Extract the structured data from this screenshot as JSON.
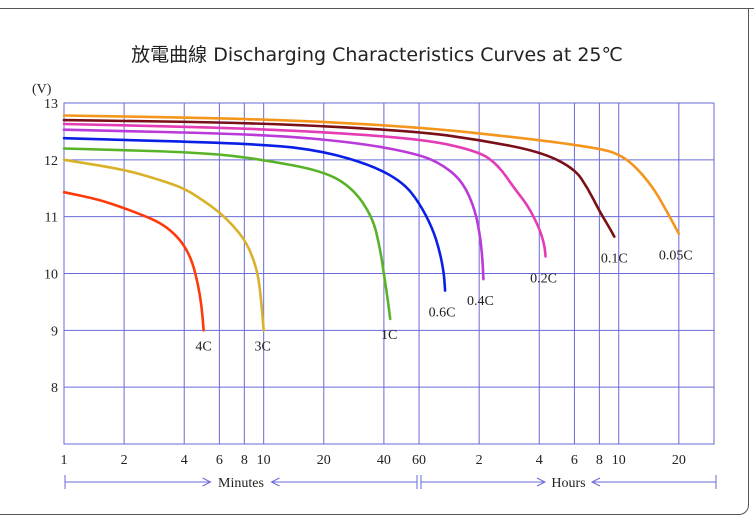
{
  "title": "放電曲線 Discharging Characteristics Curves at 25℃",
  "chart_data": {
    "type": "line",
    "title": "放電曲線 Discharging Characteristics Curves at 25℃",
    "ylabel": "(V)",
    "ylim": [
      7,
      13
    ],
    "y_ticks": [
      "13",
      "12",
      "11",
      "10",
      "9",
      "8"
    ],
    "x_ticks": [
      "1",
      "2",
      "4",
      "6",
      "8",
      "10",
      "20",
      "40",
      "60",
      "2",
      "4",
      "6",
      "8",
      "10",
      "20"
    ],
    "x_unit_labels": [
      "Minutes",
      "Hours"
    ],
    "x_scale": "log (time)",
    "grid": true,
    "series": [
      {
        "name": "4C",
        "color": "#ff3a0a",
        "points": [
          [
            1,
            11.43
          ],
          [
            1.5,
            11.3
          ],
          [
            2,
            11.15
          ],
          [
            2.5,
            11.02
          ],
          [
            3,
            10.9
          ],
          [
            3.5,
            10.73
          ],
          [
            4,
            10.5
          ],
          [
            4.4,
            10.2
          ],
          [
            4.7,
            9.8
          ],
          [
            4.9,
            9.4
          ],
          [
            5,
            9.0
          ]
        ]
      },
      {
        "name": "3C",
        "color": "#d9b22a",
        "points": [
          [
            1,
            12.0
          ],
          [
            2,
            11.83
          ],
          [
            3,
            11.65
          ],
          [
            4,
            11.5
          ],
          [
            5,
            11.28
          ],
          [
            6,
            11.08
          ],
          [
            7,
            10.85
          ],
          [
            8,
            10.6
          ],
          [
            8.8,
            10.3
          ],
          [
            9.5,
            9.9
          ],
          [
            10,
            9.0
          ]
        ]
      },
      {
        "name": "1C",
        "color": "#58b327",
        "points": [
          [
            1,
            12.2
          ],
          [
            5,
            12.13
          ],
          [
            10,
            12.0
          ],
          [
            20,
            11.8
          ],
          [
            28,
            11.5
          ],
          [
            35,
            11.0
          ],
          [
            38,
            10.5
          ],
          [
            40,
            10.0
          ],
          [
            42,
            9.5
          ],
          [
            43,
            9.2
          ]
        ]
      },
      {
        "name": "0.6C",
        "color": "#0a1fe6",
        "points": [
          [
            1,
            12.38
          ],
          [
            10,
            12.28
          ],
          [
            20,
            12.15
          ],
          [
            35,
            11.9
          ],
          [
            50,
            11.6
          ],
          [
            60,
            11.25
          ],
          [
            70,
            10.8
          ],
          [
            76,
            10.4
          ],
          [
            80,
            10.0
          ],
          [
            81,
            9.7
          ]
        ]
      },
      {
        "name": "0.4C",
        "color": "#b93ad8",
        "points": [
          [
            1,
            12.53
          ],
          [
            10,
            12.45
          ],
          [
            30,
            12.3
          ],
          [
            60,
            12.1
          ],
          [
            80,
            11.9
          ],
          [
            100,
            11.6
          ],
          [
            115,
            11.1
          ],
          [
            122,
            10.6
          ],
          [
            125,
            10.2
          ],
          [
            126,
            9.9
          ]
        ]
      },
      {
        "name": "0.2C",
        "color": "#e33cb4",
        "points": [
          [
            1,
            12.63
          ],
          [
            10,
            12.55
          ],
          [
            60,
            12.38
          ],
          [
            120,
            12.15
          ],
          [
            150,
            11.9
          ],
          [
            180,
            11.5
          ],
          [
            210,
            11.2
          ],
          [
            240,
            10.8
          ],
          [
            255,
            10.5
          ],
          [
            258,
            10.3
          ]
        ]
      },
      {
        "name": "0.1C",
        "color": "#7a0f18",
        "points": [
          [
            1,
            12.7
          ],
          [
            10,
            12.65
          ],
          [
            60,
            12.5
          ],
          [
            120,
            12.35
          ],
          [
            240,
            12.15
          ],
          [
            360,
            11.85
          ],
          [
            420,
            11.5
          ],
          [
            480,
            11.1
          ],
          [
            540,
            10.8
          ],
          [
            570,
            10.65
          ]
        ]
      },
      {
        "name": "0.05C",
        "color": "#f4961d",
        "points": [
          [
            1,
            12.78
          ],
          [
            10,
            12.72
          ],
          [
            60,
            12.58
          ],
          [
            240,
            12.35
          ],
          [
            480,
            12.2
          ],
          [
            600,
            12.1
          ],
          [
            720,
            11.9
          ],
          [
            900,
            11.5
          ],
          [
            1080,
            11.0
          ],
          [
            1200,
            10.7
          ]
        ]
      }
    ]
  }
}
